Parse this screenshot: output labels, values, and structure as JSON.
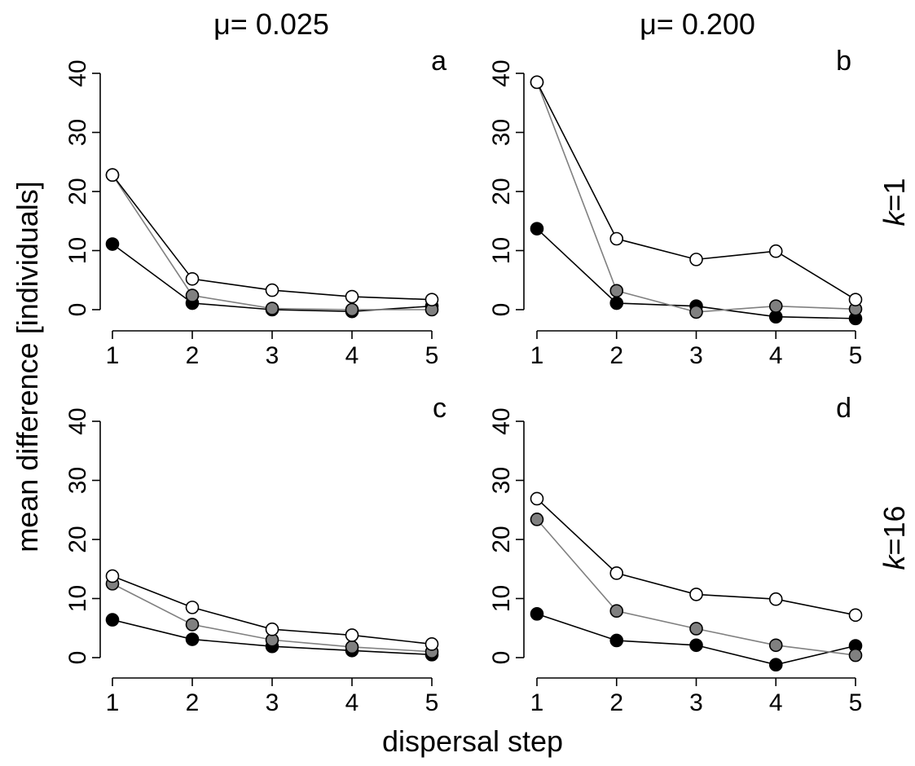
{
  "figure": {
    "xlabel": "dispersal step",
    "ylabel": "mean difference [individuals]",
    "column_titles": [
      "μ= 0.025",
      "μ= 0.200"
    ],
    "row_labels": [
      {
        "italic": "k",
        "rest": "=1"
      },
      {
        "italic": "k",
        "rest": "=16"
      }
    ]
  },
  "chart_data": [
    {
      "type": "line",
      "panel": "a",
      "x": [
        1,
        2,
        3,
        4,
        5
      ],
      "xticks": [
        "1",
        "2",
        "3",
        "4",
        "5"
      ],
      "yticks": [
        "0",
        "10",
        "20",
        "30",
        "40"
      ],
      "ylim": [
        -3,
        41
      ],
      "xlim": [
        0.85,
        5.15
      ],
      "grid": false,
      "series": [
        {
          "style": "open",
          "color": "#ffffff",
          "line": "#000000",
          "values": [
            22.8,
            5.2,
            3.3,
            2.2,
            1.7
          ]
        },
        {
          "style": "grey",
          "color": "#808080",
          "line": "#808080",
          "values": [
            22.8,
            2.4,
            0.2,
            0.0,
            0.0
          ]
        },
        {
          "style": "black",
          "color": "#000000",
          "line": "#000000",
          "values": [
            11.1,
            1.1,
            0.0,
            -0.3,
            0.6
          ]
        }
      ]
    },
    {
      "type": "line",
      "panel": "b",
      "x": [
        1,
        2,
        3,
        4,
        5
      ],
      "xticks": [
        "1",
        "2",
        "3",
        "4",
        "5"
      ],
      "yticks": [
        "0",
        "10",
        "20",
        "30",
        "40"
      ],
      "ylim": [
        -3,
        41
      ],
      "xlim": [
        0.85,
        5.15
      ],
      "grid": false,
      "series": [
        {
          "style": "open",
          "color": "#ffffff",
          "line": "#000000",
          "values": [
            38.5,
            12.0,
            8.5,
            9.9,
            1.7
          ]
        },
        {
          "style": "grey",
          "color": "#808080",
          "line": "#808080",
          "values": [
            38.5,
            3.2,
            -0.4,
            0.6,
            0.1
          ]
        },
        {
          "style": "black",
          "color": "#000000",
          "line": "#000000",
          "values": [
            13.7,
            1.1,
            0.6,
            -1.2,
            -1.5
          ]
        }
      ]
    },
    {
      "type": "line",
      "panel": "c",
      "x": [
        1,
        2,
        3,
        4,
        5
      ],
      "xticks": [
        "1",
        "2",
        "3",
        "4",
        "5"
      ],
      "yticks": [
        "0",
        "10",
        "20",
        "30",
        "40"
      ],
      "ylim": [
        -3,
        41
      ],
      "xlim": [
        0.85,
        5.15
      ],
      "grid": false,
      "series": [
        {
          "style": "open",
          "color": "#ffffff",
          "line": "#000000",
          "values": [
            13.8,
            8.5,
            4.8,
            3.8,
            2.3
          ]
        },
        {
          "style": "grey",
          "color": "#808080",
          "line": "#808080",
          "values": [
            12.5,
            5.6,
            3.0,
            1.8,
            1.0
          ]
        },
        {
          "style": "black",
          "color": "#000000",
          "line": "#000000",
          "values": [
            6.4,
            3.1,
            1.9,
            1.2,
            0.5
          ]
        }
      ]
    },
    {
      "type": "line",
      "panel": "d",
      "x": [
        1,
        2,
        3,
        4,
        5
      ],
      "xticks": [
        "1",
        "2",
        "3",
        "4",
        "5"
      ],
      "yticks": [
        "0",
        "10",
        "20",
        "30",
        "40"
      ],
      "ylim": [
        -3,
        41
      ],
      "xlim": [
        0.85,
        5.15
      ],
      "grid": false,
      "series": [
        {
          "style": "open",
          "color": "#ffffff",
          "line": "#000000",
          "values": [
            26.9,
            14.3,
            10.7,
            9.9,
            7.2
          ]
        },
        {
          "style": "grey",
          "color": "#808080",
          "line": "#808080",
          "values": [
            23.4,
            7.9,
            4.9,
            2.1,
            0.4
          ]
        },
        {
          "style": "black",
          "color": "#000000",
          "line": "#000000",
          "values": [
            7.4,
            2.9,
            2.1,
            -1.2,
            2.0
          ]
        }
      ]
    }
  ]
}
